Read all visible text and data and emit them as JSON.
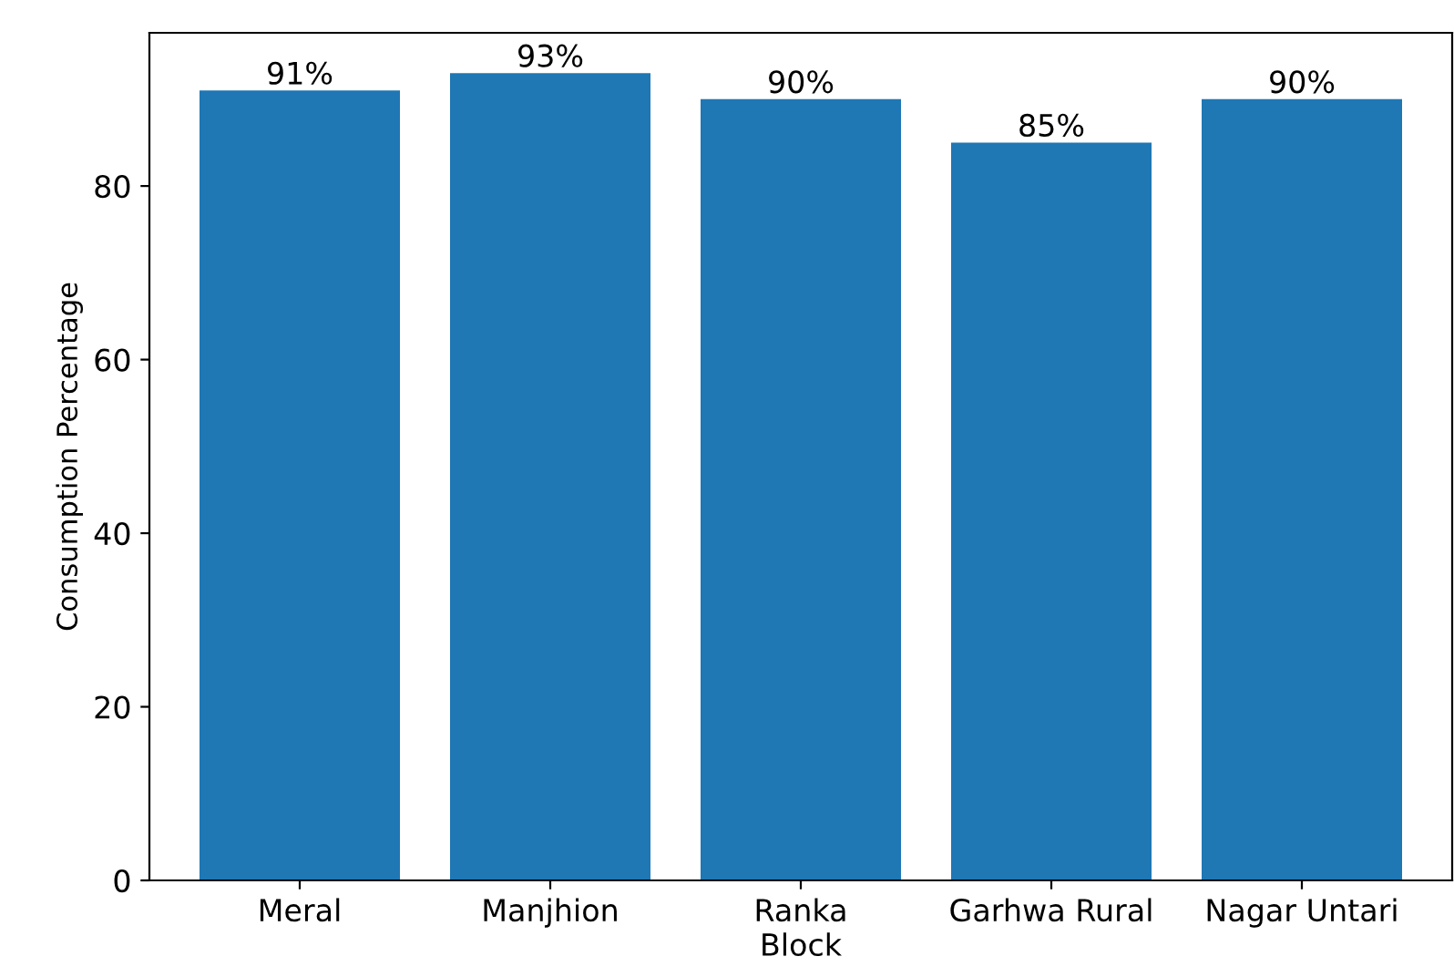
{
  "chart_data": {
    "type": "bar",
    "xlabel": "Block",
    "ylabel": "Consumption Percentage",
    "categories": [
      "Meral",
      "Manjhion",
      "Ranka",
      "Garhwa Rural",
      "Nagar Untari"
    ],
    "values": [
      91,
      93,
      90,
      85,
      90
    ],
    "color": "#1f77b4",
    "value_labels": [
      "91%",
      "93%",
      "90%",
      "85%",
      "90%"
    ],
    "ylim": [
      0,
      97.65
    ],
    "yticks": [
      0,
      20,
      40,
      60,
      80
    ],
    "grid": false,
    "legend": false
  }
}
